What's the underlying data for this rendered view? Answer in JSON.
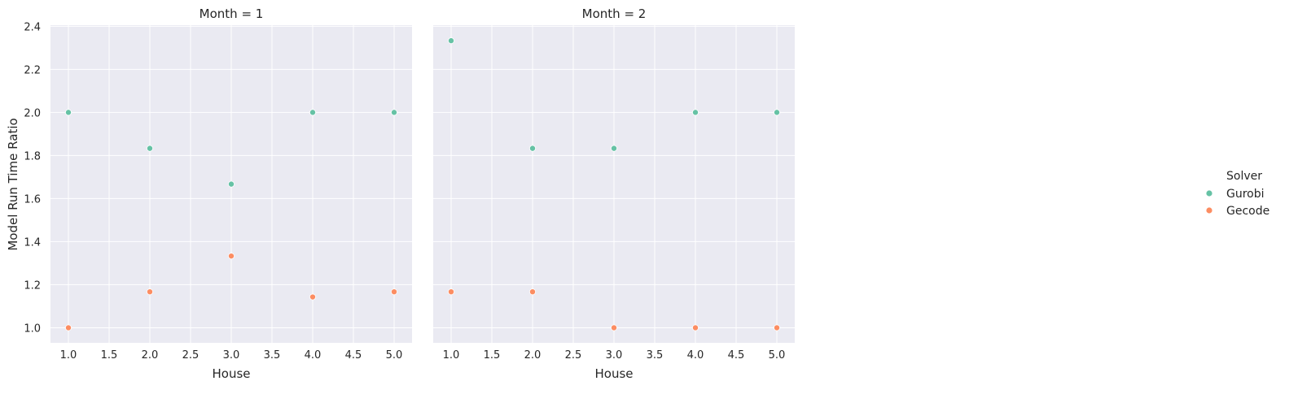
{
  "chart_data": {
    "type": "scatter",
    "xlabel": "House",
    "ylabel": "Model Run Time Ratio",
    "xlim": [
      0.78,
      5.22
    ],
    "ylim": [
      0.93,
      2.405
    ],
    "xticks": [
      1.0,
      1.5,
      2.0,
      2.5,
      3.0,
      3.5,
      4.0,
      4.5,
      5.0
    ],
    "yticks": [
      1.0,
      1.2,
      1.4,
      1.6,
      1.8,
      2.0,
      2.2,
      2.4
    ],
    "grid": true,
    "legend": {
      "title": "Solver",
      "placement": "right",
      "entries": [
        {
          "name": "Gurobi",
          "color": "#66c2a5"
        },
        {
          "name": "Gecode",
          "color": "#fc8d62"
        }
      ]
    },
    "panels": [
      {
        "title": "Month = 1",
        "series": [
          {
            "name": "Gurobi",
            "color": "#66c2a5",
            "x": [
              1,
              2,
              3,
              4,
              5
            ],
            "y": [
              2.0,
              1.833,
              1.667,
              2.0,
              2.0
            ]
          },
          {
            "name": "Gecode",
            "color": "#fc8d62",
            "x": [
              1,
              2,
              3,
              4,
              5
            ],
            "y": [
              1.0,
              1.167,
              1.333,
              1.143,
              1.167
            ]
          }
        ]
      },
      {
        "title": "Month = 2",
        "series": [
          {
            "name": "Gurobi",
            "color": "#66c2a5",
            "x": [
              1,
              2,
              3,
              4,
              5
            ],
            "y": [
              2.333,
              1.833,
              1.833,
              2.0,
              2.0
            ]
          },
          {
            "name": "Gecode",
            "color": "#fc8d62",
            "x": [
              1,
              2,
              3,
              4,
              5
            ],
            "y": [
              1.167,
              1.167,
              1.0,
              1.0,
              1.0
            ]
          }
        ]
      }
    ]
  }
}
